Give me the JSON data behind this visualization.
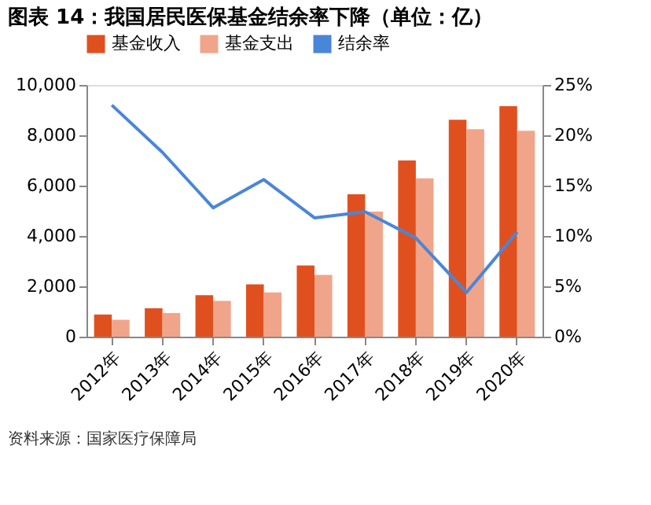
{
  "chart_data": {
    "type": "bar",
    "title": "图表 14：我国居民医保基金结余率下降（单位：亿）",
    "categories": [
      "2012年",
      "2013年",
      "2014年",
      "2015年",
      "2016年",
      "2017年",
      "2018年",
      "2019年",
      "2020年"
    ],
    "series": [
      {
        "name": "基金收入",
        "color": "#e0501e",
        "values": [
          880,
          1130,
          1650,
          2080,
          2830,
          5660,
          7000,
          8620,
          9160
        ]
      },
      {
        "name": "基金支出",
        "color": "#f0a58a",
        "values": [
          670,
          940,
          1420,
          1760,
          2450,
          4970,
          6290,
          8240,
          8180
        ]
      },
      {
        "name": "结余率",
        "type": "line",
        "axis": "y2",
        "color": "#4a86d8",
        "values": [
          23.0,
          18.3,
          12.8,
          15.6,
          11.8,
          12.4,
          9.8,
          4.4,
          10.4
        ]
      }
    ],
    "ylim": [
      0,
      10000
    ],
    "yticks": [
      {
        "value": 0,
        "label": "0"
      },
      {
        "value": 2000,
        "label": "2,000"
      },
      {
        "value": 4000,
        "label": "4,000"
      },
      {
        "value": 6000,
        "label": "6,000"
      },
      {
        "value": 8000,
        "label": "8,000"
      },
      {
        "value": 10000,
        "label": "10,000"
      }
    ],
    "y2lim": [
      0,
      25
    ],
    "y2ticks": [
      {
        "value": 0,
        "label": "0%"
      },
      {
        "value": 5,
        "label": "5%"
      },
      {
        "value": 10,
        "label": "10%"
      },
      {
        "value": 15,
        "label": "15%"
      },
      {
        "value": 20,
        "label": "20%"
      },
      {
        "value": 25,
        "label": "25%"
      }
    ],
    "legend": "top",
    "grid": false,
    "annotations": [
      "资料来源：国家医疗保障局"
    ]
  }
}
